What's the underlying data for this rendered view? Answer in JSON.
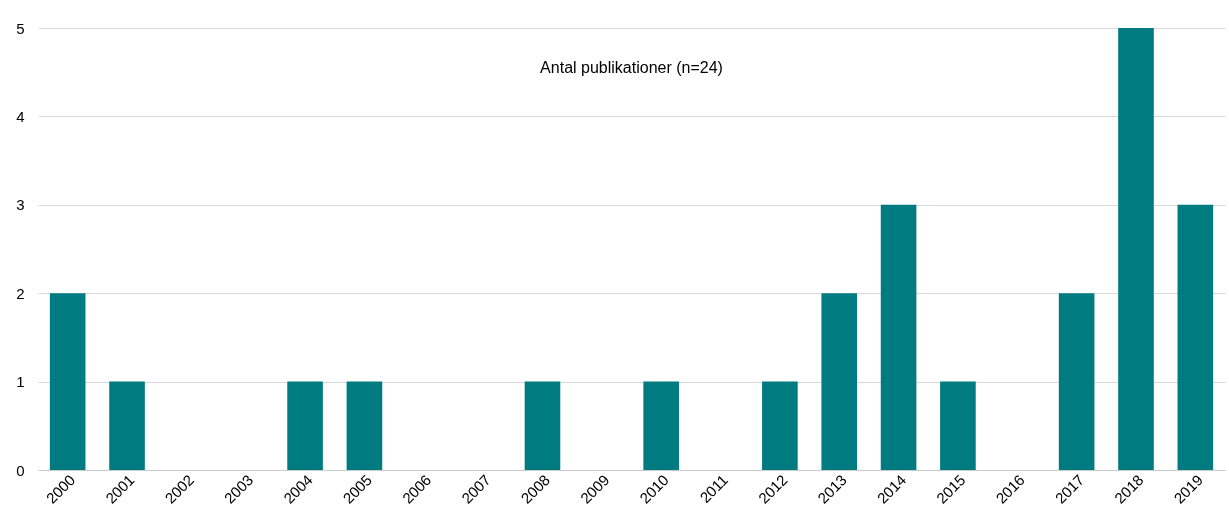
{
  "chart_data": {
    "type": "bar",
    "title": "Antal publikationer (n=24)",
    "categories": [
      "2000",
      "2001",
      "2002",
      "2003",
      "2004",
      "2005",
      "2006",
      "2007",
      "2008",
      "2009",
      "2010",
      "2011",
      "2012",
      "2013",
      "2014",
      "2015",
      "2016",
      "2017",
      "2018",
      "2019"
    ],
    "values": [
      2,
      1,
      0,
      0,
      1,
      1,
      0,
      0,
      1,
      0,
      1,
      0,
      1,
      2,
      3,
      1,
      0,
      2,
      5,
      3
    ],
    "color": "#007b80",
    "ylim": [
      0,
      5
    ],
    "yticks": [
      0,
      1,
      2,
      3,
      4,
      5
    ],
    "grid": "y"
  }
}
